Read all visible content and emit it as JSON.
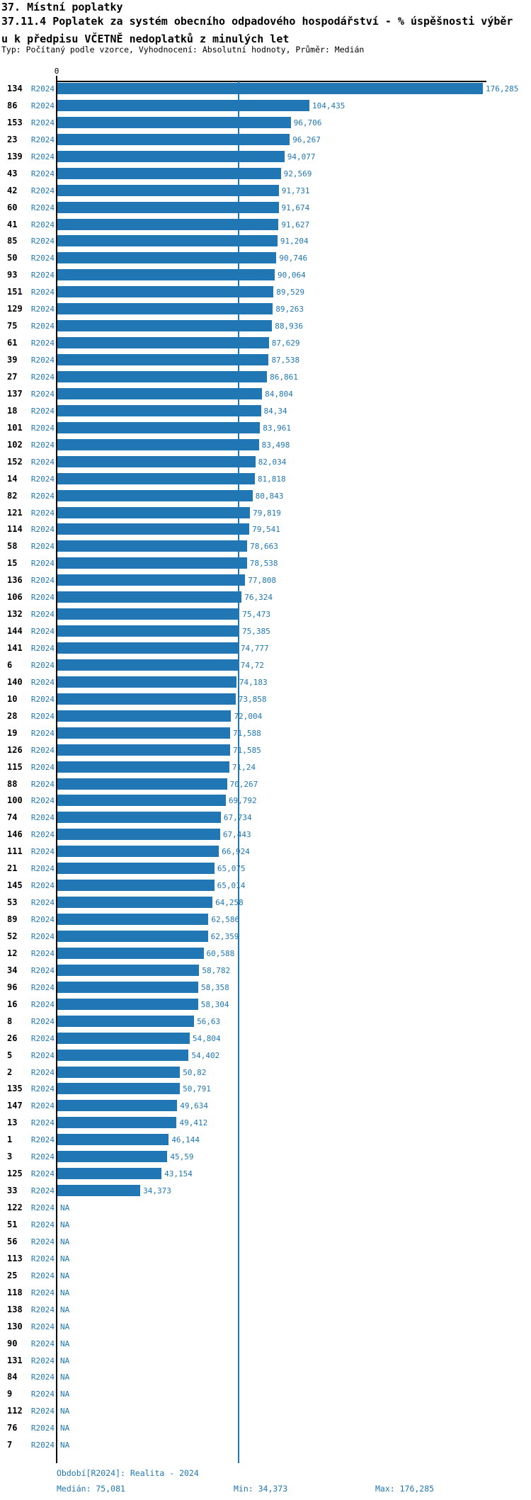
{
  "title": "37. Místní poplatky",
  "subtitle_line1": "37.11.4 Poplatek za systém obecního odpadového hospodářství  - % úspěšnosti výběr",
  "subtitle_line2": "u k předpisu VČETNĚ nedoplatků z minulých let",
  "meta": "Typ: Počítaný podle vzorce, Vyhodnocení: Absolutní hodnoty, Průměr: Medián",
  "colors": {
    "bar": "#2077b4",
    "text_blue": "#1f77b4",
    "axis": "#000000"
  },
  "footer": {
    "period": "Období[R2024]: Realita - 2024",
    "median": "Medián: 75,081",
    "min": "Min: 34,373",
    "max": "Max: 176,285"
  },
  "chart_data": {
    "type": "bar",
    "orientation": "horizontal",
    "series_label": "R2024",
    "na_label": "NA",
    "x_axis": {
      "zero_label": "0",
      "min": 0,
      "max": 176.285,
      "grid": false
    },
    "median_line_value": 75.081,
    "summary": {
      "median": 75.081,
      "min": 34.373,
      "max": 176.285
    },
    "rows": [
      {
        "id": "134",
        "value": 176.285,
        "label": "176,285"
      },
      {
        "id": "86",
        "value": 104.435,
        "label": "104,435"
      },
      {
        "id": "153",
        "value": 96.706,
        "label": "96,706"
      },
      {
        "id": "23",
        "value": 96.267,
        "label": "96,267"
      },
      {
        "id": "139",
        "value": 94.077,
        "label": "94,077"
      },
      {
        "id": "43",
        "value": 92.569,
        "label": "92,569"
      },
      {
        "id": "42",
        "value": 91.731,
        "label": "91,731"
      },
      {
        "id": "60",
        "value": 91.674,
        "label": "91,674"
      },
      {
        "id": "41",
        "value": 91.627,
        "label": "91,627"
      },
      {
        "id": "85",
        "value": 91.204,
        "label": "91,204"
      },
      {
        "id": "50",
        "value": 90.746,
        "label": "90,746"
      },
      {
        "id": "93",
        "value": 90.064,
        "label": "90,064"
      },
      {
        "id": "151",
        "value": 89.529,
        "label": "89,529"
      },
      {
        "id": "129",
        "value": 89.263,
        "label": "89,263"
      },
      {
        "id": "75",
        "value": 88.936,
        "label": "88,936"
      },
      {
        "id": "61",
        "value": 87.629,
        "label": "87,629"
      },
      {
        "id": "39",
        "value": 87.538,
        "label": "87,538"
      },
      {
        "id": "27",
        "value": 86.861,
        "label": "86,861"
      },
      {
        "id": "137",
        "value": 84.804,
        "label": "84,804"
      },
      {
        "id": "18",
        "value": 84.34,
        "label": "84,34"
      },
      {
        "id": "101",
        "value": 83.961,
        "label": "83,961"
      },
      {
        "id": "102",
        "value": 83.498,
        "label": "83,498"
      },
      {
        "id": "152",
        "value": 82.034,
        "label": "82,034"
      },
      {
        "id": "14",
        "value": 81.818,
        "label": "81,818"
      },
      {
        "id": "82",
        "value": 80.843,
        "label": "80,843"
      },
      {
        "id": "121",
        "value": 79.819,
        "label": "79,819"
      },
      {
        "id": "114",
        "value": 79.541,
        "label": "79,541"
      },
      {
        "id": "58",
        "value": 78.663,
        "label": "78,663"
      },
      {
        "id": "15",
        "value": 78.538,
        "label": "78,538"
      },
      {
        "id": "136",
        "value": 77.808,
        "label": "77,808"
      },
      {
        "id": "106",
        "value": 76.324,
        "label": "76,324"
      },
      {
        "id": "132",
        "value": 75.473,
        "label": "75,473"
      },
      {
        "id": "144",
        "value": 75.385,
        "label": "75,385"
      },
      {
        "id": "141",
        "value": 74.777,
        "label": "74,777"
      },
      {
        "id": "6",
        "value": 74.72,
        "label": "74,72"
      },
      {
        "id": "140",
        "value": 74.183,
        "label": "74,183"
      },
      {
        "id": "10",
        "value": 73.858,
        "label": "73,858"
      },
      {
        "id": "28",
        "value": 72.004,
        "label": "72,004"
      },
      {
        "id": "19",
        "value": 71.588,
        "label": "71,588"
      },
      {
        "id": "126",
        "value": 71.585,
        "label": "71,585"
      },
      {
        "id": "115",
        "value": 71.24,
        "label": "71,24"
      },
      {
        "id": "88",
        "value": 70.267,
        "label": "70,267"
      },
      {
        "id": "100",
        "value": 69.792,
        "label": "69,792"
      },
      {
        "id": "74",
        "value": 67.734,
        "label": "67,734"
      },
      {
        "id": "146",
        "value": 67.443,
        "label": "67,443"
      },
      {
        "id": "111",
        "value": 66.924,
        "label": "66,924"
      },
      {
        "id": "21",
        "value": 65.075,
        "label": "65,075"
      },
      {
        "id": "145",
        "value": 65.014,
        "label": "65,014"
      },
      {
        "id": "53",
        "value": 64.258,
        "label": "64,258"
      },
      {
        "id": "89",
        "value": 62.586,
        "label": "62,586"
      },
      {
        "id": "52",
        "value": 62.359,
        "label": "62,359"
      },
      {
        "id": "12",
        "value": 60.588,
        "label": "60,588"
      },
      {
        "id": "34",
        "value": 58.782,
        "label": "58,782"
      },
      {
        "id": "96",
        "value": 58.358,
        "label": "58,358"
      },
      {
        "id": "16",
        "value": 58.304,
        "label": "58,304"
      },
      {
        "id": "8",
        "value": 56.63,
        "label": "56,63"
      },
      {
        "id": "26",
        "value": 54.804,
        "label": "54,804"
      },
      {
        "id": "5",
        "value": 54.402,
        "label": "54,402"
      },
      {
        "id": "2",
        "value": 50.82,
        "label": "50,82"
      },
      {
        "id": "135",
        "value": 50.791,
        "label": "50,791"
      },
      {
        "id": "147",
        "value": 49.634,
        "label": "49,634"
      },
      {
        "id": "13",
        "value": 49.412,
        "label": "49,412"
      },
      {
        "id": "1",
        "value": 46.144,
        "label": "46,144"
      },
      {
        "id": "3",
        "value": 45.59,
        "label": "45,59"
      },
      {
        "id": "125",
        "value": 43.154,
        "label": "43,154"
      },
      {
        "id": "33",
        "value": 34.373,
        "label": "34,373"
      },
      {
        "id": "122",
        "value": null,
        "label": "NA"
      },
      {
        "id": "51",
        "value": null,
        "label": "NA"
      },
      {
        "id": "56",
        "value": null,
        "label": "NA"
      },
      {
        "id": "113",
        "value": null,
        "label": "NA"
      },
      {
        "id": "25",
        "value": null,
        "label": "NA"
      },
      {
        "id": "118",
        "value": null,
        "label": "NA"
      },
      {
        "id": "138",
        "value": null,
        "label": "NA"
      },
      {
        "id": "130",
        "value": null,
        "label": "NA"
      },
      {
        "id": "90",
        "value": null,
        "label": "NA"
      },
      {
        "id": "131",
        "value": null,
        "label": "NA"
      },
      {
        "id": "84",
        "value": null,
        "label": "NA"
      },
      {
        "id": "9",
        "value": null,
        "label": "NA"
      },
      {
        "id": "112",
        "value": null,
        "label": "NA"
      },
      {
        "id": "76",
        "value": null,
        "label": "NA"
      },
      {
        "id": "7",
        "value": null,
        "label": "NA"
      }
    ]
  }
}
